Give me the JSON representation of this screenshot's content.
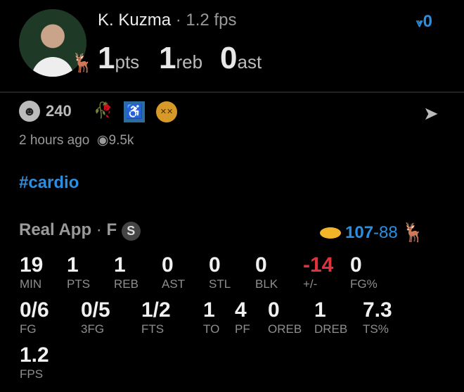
{
  "player": {
    "name": "K. Kuzma",
    "fps": "1.2 fps",
    "pts": "1",
    "pts_unit": "pts",
    "reb": "1",
    "reb_unit": "reb",
    "ast": "0",
    "ast_unit": "ast"
  },
  "upvote": {
    "icon": "upvote-icon",
    "count": "0"
  },
  "reactions": {
    "count": "240",
    "emojis": [
      "wilted-rose-icon",
      "wheelchair-icon",
      "dizzy-face-icon"
    ]
  },
  "meta": {
    "time": "2 hours ago",
    "views": "9.5k"
  },
  "hashtag": "#cardio",
  "game": {
    "app": "Real App",
    "sep": "·",
    "status": "F",
    "badge": "S",
    "score_team": "107",
    "score_dash": "-",
    "score_opp": "88"
  },
  "stats_row1": [
    {
      "v": "19",
      "l": "MIN"
    },
    {
      "v": "1",
      "l": "PTS"
    },
    {
      "v": "1",
      "l": "REB"
    },
    {
      "v": "0",
      "l": "AST"
    },
    {
      "v": "0",
      "l": "STL"
    },
    {
      "v": "0",
      "l": "BLK"
    },
    {
      "v": "-14",
      "l": "+/-"
    },
    {
      "v": "0",
      "l": "FG%"
    }
  ],
  "stats_row2": [
    {
      "v": "0/6",
      "l": "FG"
    },
    {
      "v": "0/5",
      "l": "3FG"
    },
    {
      "v": "1/2",
      "l": "FTS"
    },
    {
      "v": "1",
      "l": "TO"
    },
    {
      "v": "4",
      "l": "PF"
    },
    {
      "v": "0",
      "l": "OREB"
    },
    {
      "v": "1",
      "l": "DREB"
    },
    {
      "v": "7.3",
      "l": "TS%"
    }
  ],
  "stats_row3": [
    {
      "v": "1.2",
      "l": "FPS"
    }
  ],
  "colors": {
    "accent": "#2a8fe0",
    "negative": "#e0323a",
    "background": "#000000"
  }
}
